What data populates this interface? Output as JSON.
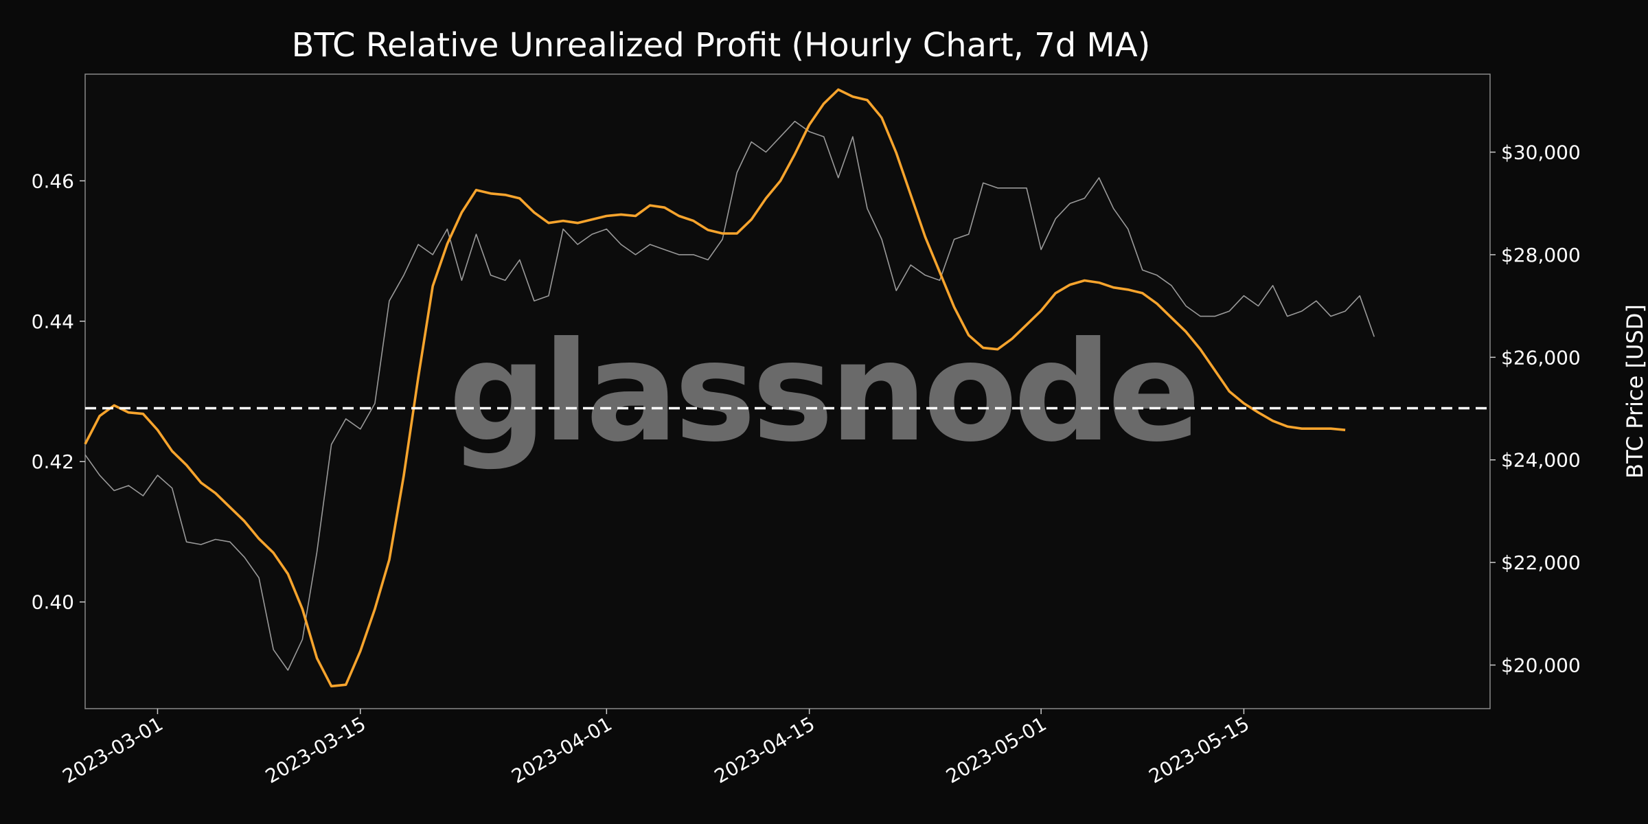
{
  "chart_data": {
    "type": "line",
    "title": "BTC Relative Unrealized Profit (Hourly Chart, 7d MA)",
    "xlabel": "",
    "ylabel_left": "",
    "ylabel_right": "BTC Price [USD]",
    "watermark": "glassnode",
    "x_ticks": [
      "2023-03-01",
      "2023-03-15",
      "2023-04-01",
      "2023-04-15",
      "2023-05-01",
      "2023-05-15"
    ],
    "y_left_ticks": [
      "0.40",
      "0.42",
      "0.44",
      "0.46"
    ],
    "y_right_ticks": [
      "$20,000",
      "$22,000",
      "$24,000",
      "$26,000",
      "$28,000",
      "$30,000"
    ],
    "xlim": [
      "2023-02-24",
      "2023-06-01"
    ],
    "ylim_left": [
      0.3848,
      0.4752
    ],
    "ylim_right": [
      19150,
      31520
    ],
    "grid": false,
    "reference_line": {
      "y": 0.4276,
      "style": "dashed",
      "color": "#ffffff"
    },
    "series": [
      {
        "axis": "left",
        "color": "#f7a42d",
        "points": [
          [
            "2023-02-24",
            0.4225
          ],
          [
            "2023-02-25",
            0.4265
          ],
          [
            "2023-02-26",
            0.428
          ],
          [
            "2023-02-27",
            0.427
          ],
          [
            "2023-02-28",
            0.4268
          ],
          [
            "2023-03-01",
            0.4245
          ],
          [
            "2023-03-02",
            0.4215
          ],
          [
            "2023-03-03",
            0.4195
          ],
          [
            "2023-03-04",
            0.417
          ],
          [
            "2023-03-05",
            0.4155
          ],
          [
            "2023-03-06",
            0.4135
          ],
          [
            "2023-03-07",
            0.4115
          ],
          [
            "2023-03-08",
            0.409
          ],
          [
            "2023-03-09",
            0.407
          ],
          [
            "2023-03-10",
            0.404
          ],
          [
            "2023-03-11",
            0.399
          ],
          [
            "2023-03-12",
            0.392
          ],
          [
            "2023-03-13",
            0.388
          ],
          [
            "2023-03-14",
            0.3882
          ],
          [
            "2023-03-15",
            0.393
          ],
          [
            "2023-03-16",
            0.399
          ],
          [
            "2023-03-17",
            0.406
          ],
          [
            "2023-03-18",
            0.418
          ],
          [
            "2023-03-19",
            0.432
          ],
          [
            "2023-03-20",
            0.445
          ],
          [
            "2023-03-21",
            0.451
          ],
          [
            "2023-03-22",
            0.4555
          ],
          [
            "2023-03-23",
            0.4587
          ],
          [
            "2023-03-24",
            0.4582
          ],
          [
            "2023-03-25",
            0.458
          ],
          [
            "2023-03-26",
            0.4575
          ],
          [
            "2023-03-27",
            0.4555
          ],
          [
            "2023-03-28",
            0.454
          ],
          [
            "2023-03-29",
            0.4543
          ],
          [
            "2023-03-30",
            0.454
          ],
          [
            "2023-03-31",
            0.4545
          ],
          [
            "2023-04-01",
            0.455
          ],
          [
            "2023-04-02",
            0.4552
          ],
          [
            "2023-04-03",
            0.455
          ],
          [
            "2023-04-04",
            0.4565
          ],
          [
            "2023-04-05",
            0.4562
          ],
          [
            "2023-04-06",
            0.455
          ],
          [
            "2023-04-07",
            0.4543
          ],
          [
            "2023-04-08",
            0.453
          ],
          [
            "2023-04-09",
            0.4525
          ],
          [
            "2023-04-10",
            0.4525
          ],
          [
            "2023-04-11",
            0.4545
          ],
          [
            "2023-04-12",
            0.4575
          ],
          [
            "2023-04-13",
            0.46
          ],
          [
            "2023-04-14",
            0.4638
          ],
          [
            "2023-04-15",
            0.468
          ],
          [
            "2023-04-16",
            0.471
          ],
          [
            "2023-04-17",
            0.473
          ],
          [
            "2023-04-18",
            0.472
          ],
          [
            "2023-04-19",
            0.4715
          ],
          [
            "2023-04-20",
            0.469
          ],
          [
            "2023-04-21",
            0.464
          ],
          [
            "2023-04-22",
            0.458
          ],
          [
            "2023-04-23",
            0.452
          ],
          [
            "2023-04-24",
            0.447
          ],
          [
            "2023-04-25",
            0.442
          ],
          [
            "2023-04-26",
            0.438
          ],
          [
            "2023-04-27",
            0.4362
          ],
          [
            "2023-04-28",
            0.436
          ],
          [
            "2023-04-29",
            0.4375
          ],
          [
            "2023-04-30",
            0.4395
          ],
          [
            "2023-05-01",
            0.4415
          ],
          [
            "2023-05-02",
            0.444
          ],
          [
            "2023-05-03",
            0.4452
          ],
          [
            "2023-05-04",
            0.4458
          ],
          [
            "2023-05-05",
            0.4455
          ],
          [
            "2023-05-06",
            0.4448
          ],
          [
            "2023-05-07",
            0.4445
          ],
          [
            "2023-05-08",
            0.444
          ],
          [
            "2023-05-09",
            0.4425
          ],
          [
            "2023-05-10",
            0.4405
          ],
          [
            "2023-05-11",
            0.4385
          ],
          [
            "2023-05-12",
            0.436
          ],
          [
            "2023-05-13",
            0.433
          ],
          [
            "2023-05-14",
            0.43
          ],
          [
            "2023-05-15",
            0.4283
          ],
          [
            "2023-05-16",
            0.427
          ],
          [
            "2023-05-17",
            0.4258
          ],
          [
            "2023-05-18",
            0.425
          ],
          [
            "2023-05-19",
            0.4247
          ],
          [
            "2023-05-20",
            0.4247
          ],
          [
            "2023-05-21",
            0.4247
          ],
          [
            "2023-05-22",
            0.4245
          ]
        ]
      },
      {
        "axis": "right",
        "color": "#9a9a9a",
        "points": [
          [
            "2023-02-24",
            24100
          ],
          [
            "2023-02-25",
            23700
          ],
          [
            "2023-02-26",
            23400
          ],
          [
            "2023-02-27",
            23500
          ],
          [
            "2023-02-28",
            23300
          ],
          [
            "2023-03-01",
            23700
          ],
          [
            "2023-03-02",
            23450
          ],
          [
            "2023-03-03",
            22400
          ],
          [
            "2023-03-04",
            22350
          ],
          [
            "2023-03-05",
            22450
          ],
          [
            "2023-03-06",
            22400
          ],
          [
            "2023-03-07",
            22100
          ],
          [
            "2023-03-08",
            21700
          ],
          [
            "2023-03-09",
            20300
          ],
          [
            "2023-03-10",
            19900
          ],
          [
            "2023-03-11",
            20500
          ],
          [
            "2023-03-12",
            22200
          ],
          [
            "2023-03-13",
            24300
          ],
          [
            "2023-03-14",
            24800
          ],
          [
            "2023-03-15",
            24600
          ],
          [
            "2023-03-16",
            25100
          ],
          [
            "2023-03-17",
            27100
          ],
          [
            "2023-03-18",
            27600
          ],
          [
            "2023-03-19",
            28200
          ],
          [
            "2023-03-20",
            28000
          ],
          [
            "2023-03-21",
            28500
          ],
          [
            "2023-03-22",
            27500
          ],
          [
            "2023-03-23",
            28400
          ],
          [
            "2023-03-24",
            27600
          ],
          [
            "2023-03-25",
            27500
          ],
          [
            "2023-03-26",
            27900
          ],
          [
            "2023-03-27",
            27100
          ],
          [
            "2023-03-28",
            27200
          ],
          [
            "2023-03-29",
            28500
          ],
          [
            "2023-03-30",
            28200
          ],
          [
            "2023-03-31",
            28400
          ],
          [
            "2023-04-01",
            28500
          ],
          [
            "2023-04-02",
            28200
          ],
          [
            "2023-04-03",
            28000
          ],
          [
            "2023-04-04",
            28200
          ],
          [
            "2023-04-05",
            28100
          ],
          [
            "2023-04-06",
            28000
          ],
          [
            "2023-04-07",
            28000
          ],
          [
            "2023-04-08",
            27900
          ],
          [
            "2023-04-09",
            28300
          ],
          [
            "2023-04-10",
            29600
          ],
          [
            "2023-04-11",
            30200
          ],
          [
            "2023-04-12",
            30000
          ],
          [
            "2023-04-13",
            30300
          ],
          [
            "2023-04-14",
            30600
          ],
          [
            "2023-04-15",
            30400
          ],
          [
            "2023-04-16",
            30300
          ],
          [
            "2023-04-17",
            29500
          ],
          [
            "2023-04-18",
            30300
          ],
          [
            "2023-04-19",
            28900
          ],
          [
            "2023-04-20",
            28300
          ],
          [
            "2023-04-21",
            27300
          ],
          [
            "2023-04-22",
            27800
          ],
          [
            "2023-04-23",
            27600
          ],
          [
            "2023-04-24",
            27500
          ],
          [
            "2023-04-25",
            28300
          ],
          [
            "2023-04-26",
            28400
          ],
          [
            "2023-04-27",
            29400
          ],
          [
            "2023-04-28",
            29300
          ],
          [
            "2023-04-29",
            29300
          ],
          [
            "2023-04-30",
            29300
          ],
          [
            "2023-05-01",
            28100
          ],
          [
            "2023-05-02",
            28700
          ],
          [
            "2023-05-03",
            29000
          ],
          [
            "2023-05-04",
            29100
          ],
          [
            "2023-05-05",
            29500
          ],
          [
            "2023-05-06",
            28900
          ],
          [
            "2023-05-07",
            28500
          ],
          [
            "2023-05-08",
            27700
          ],
          [
            "2023-05-09",
            27600
          ],
          [
            "2023-05-10",
            27400
          ],
          [
            "2023-05-11",
            27000
          ],
          [
            "2023-05-12",
            26800
          ],
          [
            "2023-05-13",
            26800
          ],
          [
            "2023-05-14",
            26900
          ],
          [
            "2023-05-15",
            27200
          ],
          [
            "2023-05-16",
            27000
          ],
          [
            "2023-05-17",
            27400
          ],
          [
            "2023-05-18",
            26800
          ],
          [
            "2023-05-19",
            26900
          ],
          [
            "2023-05-20",
            27100
          ],
          [
            "2023-05-21",
            26800
          ],
          [
            "2023-05-22",
            26900
          ],
          [
            "2023-05-23",
            27200
          ],
          [
            "2023-05-24",
            26400
          ]
        ]
      }
    ]
  }
}
